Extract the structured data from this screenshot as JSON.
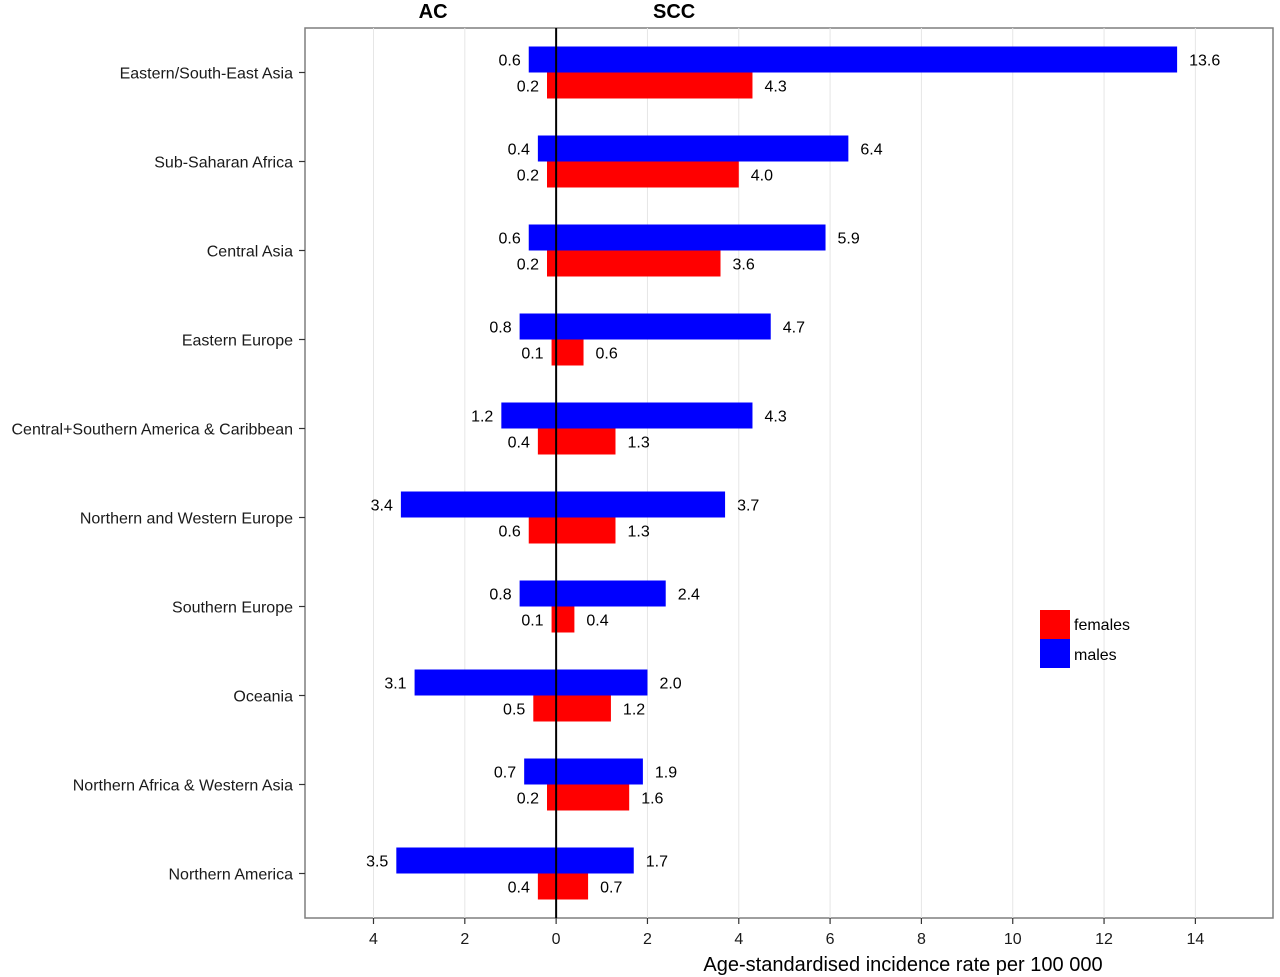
{
  "chart_data": {
    "type": "bar",
    "orientation": "horizontal",
    "layout": "back-to-back (AC values extend left of zero, SCC values extend right)",
    "side_headers": {
      "left": "AC",
      "right": "SCC"
    },
    "xlabel": "Age-standardised incidence rate per 100 000",
    "xlim": [
      -5.5,
      15.7
    ],
    "x_ticks": [
      {
        "value": -4,
        "label": "4"
      },
      {
        "value": -2,
        "label": "2"
      },
      {
        "value": 0,
        "label": "0"
      },
      {
        "value": 2,
        "label": "2"
      },
      {
        "value": 4,
        "label": "4"
      },
      {
        "value": 6,
        "label": "6"
      },
      {
        "value": 8,
        "label": "8"
      },
      {
        "value": 10,
        "label": "10"
      },
      {
        "value": 12,
        "label": "12"
      },
      {
        "value": 14,
        "label": "14"
      }
    ],
    "grid": true,
    "legend_position": "right, inside plot",
    "categories": [
      "Eastern/South-East Asia",
      "Sub-Saharan Africa",
      "Central Asia",
      "Eastern Europe",
      "Central+Southern America & Caribbean",
      "Northern and Western Europe",
      "Southern Europe",
      "Oceania",
      "Northern Africa & Western Asia",
      "Northern America"
    ],
    "series": [
      {
        "name": "males",
        "color": "#0000ff",
        "AC": [
          "0.6",
          "0.4",
          "0.6",
          "0.8",
          "1.2",
          "3.4",
          "0.8",
          "3.1",
          "0.7",
          "3.5"
        ],
        "SCC": [
          "13.6",
          "6.4",
          "5.9",
          "4.7",
          "4.3",
          "3.7",
          "2.4",
          "2.0",
          "1.9",
          "1.7"
        ]
      },
      {
        "name": "females",
        "color": "#ff0000",
        "AC": [
          "0.2",
          "0.2",
          "0.2",
          "0.1",
          "0.4",
          "0.6",
          "0.1",
          "0.5",
          "0.2",
          "0.4"
        ],
        "SCC": [
          "4.3",
          "4.0",
          "3.6",
          "0.6",
          "1.3",
          "1.3",
          "0.4",
          "1.2",
          "1.6",
          "0.7"
        ]
      }
    ],
    "legend": [
      {
        "name": "females",
        "color": "#ff0000"
      },
      {
        "name": "males",
        "color": "#0000ff"
      }
    ]
  }
}
